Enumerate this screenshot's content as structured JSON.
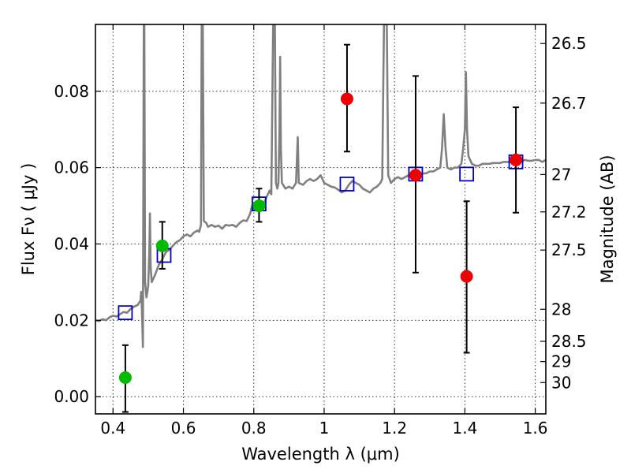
{
  "chart_data": {
    "type": "scatter",
    "title": "",
    "xlabel": "Wavelength  λ (μm)",
    "ylabel": "Flux  Fν  ( μJy )",
    "ylabel_right": "Magnitude (AB)",
    "xlim": [
      0.35,
      1.63
    ],
    "ylim": [
      -0.0045,
      0.0975
    ],
    "grid": true,
    "x_ticks": [
      0.4,
      0.6,
      0.8,
      1.0,
      1.2,
      1.4,
      1.6
    ],
    "x_tick_labels": [
      "0.4",
      "0.6",
      "0.8",
      "1",
      "1.2",
      "1.4",
      "1.6"
    ],
    "y_ticks": [
      0.0,
      0.02,
      0.04,
      0.06,
      0.08
    ],
    "y_tick_labels": [
      "0.00",
      "0.02",
      "0.04",
      "0.06",
      "0.08"
    ],
    "right_ticks": [
      {
        "flux": 0.0925,
        "label": "26.5"
      },
      {
        "flux": 0.0769,
        "label": "26.7"
      },
      {
        "flux": 0.0582,
        "label": "27"
      },
      {
        "flux": 0.0484,
        "label": "27.2"
      },
      {
        "flux": 0.0384,
        "label": "27.5"
      },
      {
        "flux": 0.0229,
        "label": "28"
      },
      {
        "flux": 0.0145,
        "label": "28.5"
      },
      {
        "flux": 0.0092,
        "label": "29"
      },
      {
        "flux": 0.0037,
        "label": "30"
      }
    ],
    "series": [
      {
        "kind": "line",
        "color": "#808080",
        "points": [
          [
            0.35,
            0.02
          ],
          [
            0.36,
            0.0198
          ],
          [
            0.37,
            0.0203
          ],
          [
            0.38,
            0.02
          ],
          [
            0.39,
            0.0208
          ],
          [
            0.4,
            0.0212
          ],
          [
            0.41,
            0.021
          ],
          [
            0.42,
            0.0216
          ],
          [
            0.43,
            0.0222
          ],
          [
            0.44,
            0.022
          ],
          [
            0.45,
            0.023
          ],
          [
            0.46,
            0.0236
          ],
          [
            0.47,
            0.024
          ],
          [
            0.478,
            0.0252
          ],
          [
            0.48,
            0.0275
          ],
          [
            0.482,
            0.023
          ],
          [
            0.485,
            0.013
          ],
          [
            0.4875,
            0.0975
          ],
          [
            0.489,
            0.0975
          ],
          [
            0.491,
            0.03
          ],
          [
            0.495,
            0.026
          ],
          [
            0.5,
            0.029
          ],
          [
            0.503,
            0.038
          ],
          [
            0.505,
            0.048
          ],
          [
            0.507,
            0.034
          ],
          [
            0.51,
            0.03
          ],
          [
            0.52,
            0.032
          ],
          [
            0.53,
            0.0345
          ],
          [
            0.54,
            0.036
          ],
          [
            0.55,
            0.0378
          ],
          [
            0.56,
            0.0385
          ],
          [
            0.57,
            0.0395
          ],
          [
            0.58,
            0.0405
          ],
          [
            0.59,
            0.041
          ],
          [
            0.6,
            0.042
          ],
          [
            0.61,
            0.0425
          ],
          [
            0.62,
            0.042
          ],
          [
            0.63,
            0.043
          ],
          [
            0.64,
            0.0435
          ],
          [
            0.645,
            0.0432
          ],
          [
            0.65,
            0.045
          ],
          [
            0.652,
            0.0975
          ],
          [
            0.655,
            0.0975
          ],
          [
            0.658,
            0.046
          ],
          [
            0.665,
            0.0455
          ],
          [
            0.67,
            0.0445
          ],
          [
            0.68,
            0.045
          ],
          [
            0.69,
            0.0445
          ],
          [
            0.7,
            0.0448
          ],
          [
            0.71,
            0.044
          ],
          [
            0.72,
            0.045
          ],
          [
            0.73,
            0.0448
          ],
          [
            0.74,
            0.045
          ],
          [
            0.75,
            0.0445
          ],
          [
            0.76,
            0.0455
          ],
          [
            0.77,
            0.0462
          ],
          [
            0.78,
            0.046
          ],
          [
            0.785,
            0.047
          ],
          [
            0.79,
            0.048
          ],
          [
            0.795,
            0.05
          ],
          [
            0.8,
            0.049
          ],
          [
            0.81,
            0.05
          ],
          [
            0.815,
            0.0495
          ],
          [
            0.82,
            0.0505
          ],
          [
            0.83,
            0.051
          ],
          [
            0.835,
            0.052
          ],
          [
            0.84,
            0.053
          ],
          [
            0.845,
            0.054
          ],
          [
            0.85,
            0.053
          ],
          [
            0.855,
            0.0975
          ],
          [
            0.86,
            0.0975
          ],
          [
            0.863,
            0.056
          ],
          [
            0.867,
            0.0545
          ],
          [
            0.87,
            0.056
          ],
          [
            0.873,
            0.069
          ],
          [
            0.875,
            0.089
          ],
          [
            0.877,
            0.065
          ],
          [
            0.88,
            0.056
          ],
          [
            0.89,
            0.0545
          ],
          [
            0.9,
            0.055
          ],
          [
            0.91,
            0.0545
          ],
          [
            0.92,
            0.056
          ],
          [
            0.925,
            0.068
          ],
          [
            0.928,
            0.056
          ],
          [
            0.94,
            0.0555
          ],
          [
            0.95,
            0.0565
          ],
          [
            0.96,
            0.057
          ],
          [
            0.97,
            0.0565
          ],
          [
            0.98,
            0.057
          ],
          [
            0.99,
            0.058
          ],
          [
            1.0,
            0.056
          ],
          [
            1.01,
            0.0555
          ],
          [
            1.02,
            0.055
          ],
          [
            1.03,
            0.0548
          ],
          [
            1.04,
            0.0542
          ],
          [
            1.05,
            0.0535
          ],
          [
            1.06,
            0.054
          ],
          [
            1.07,
            0.0555
          ],
          [
            1.08,
            0.0565
          ],
          [
            1.09,
            0.056
          ],
          [
            1.1,
            0.0555
          ],
          [
            1.11,
            0.0545
          ],
          [
            1.12,
            0.054
          ],
          [
            1.13,
            0.0535
          ],
          [
            1.14,
            0.0545
          ],
          [
            1.15,
            0.055
          ],
          [
            1.16,
            0.056
          ],
          [
            1.165,
            0.057
          ],
          [
            1.17,
            0.0975
          ],
          [
            1.178,
            0.0975
          ],
          [
            1.182,
            0.058
          ],
          [
            1.19,
            0.056
          ],
          [
            1.2,
            0.057
          ],
          [
            1.21,
            0.0575
          ],
          [
            1.22,
            0.057
          ],
          [
            1.23,
            0.0575
          ],
          [
            1.24,
            0.058
          ],
          [
            1.25,
            0.0578
          ],
          [
            1.26,
            0.058
          ],
          [
            1.27,
            0.0582
          ],
          [
            1.28,
            0.0585
          ],
          [
            1.29,
            0.0585
          ],
          [
            1.3,
            0.059
          ],
          [
            1.31,
            0.059
          ],
          [
            1.32,
            0.0595
          ],
          [
            1.33,
            0.06
          ],
          [
            1.335,
            0.065
          ],
          [
            1.34,
            0.074
          ],
          [
            1.345,
            0.065
          ],
          [
            1.35,
            0.06
          ],
          [
            1.36,
            0.0595
          ],
          [
            1.37,
            0.06
          ],
          [
            1.38,
            0.06
          ],
          [
            1.39,
            0.061
          ],
          [
            1.395,
            0.065
          ],
          [
            1.4,
            0.07
          ],
          [
            1.403,
            0.085
          ],
          [
            1.406,
            0.07
          ],
          [
            1.41,
            0.063
          ],
          [
            1.42,
            0.061
          ],
          [
            1.43,
            0.0605
          ],
          [
            1.44,
            0.0605
          ],
          [
            1.45,
            0.061
          ],
          [
            1.46,
            0.061
          ],
          [
            1.47,
            0.061
          ],
          [
            1.48,
            0.0612
          ],
          [
            1.49,
            0.0612
          ],
          [
            1.5,
            0.0612
          ],
          [
            1.51,
            0.0615
          ],
          [
            1.52,
            0.0615
          ],
          [
            1.53,
            0.0615
          ],
          [
            1.54,
            0.0615
          ],
          [
            1.55,
            0.062
          ],
          [
            1.56,
            0.0615
          ],
          [
            1.57,
            0.062
          ],
          [
            1.58,
            0.0618
          ],
          [
            1.59,
            0.0618
          ],
          [
            1.6,
            0.062
          ],
          [
            1.61,
            0.062
          ],
          [
            1.62,
            0.0615
          ],
          [
            1.63,
            0.062
          ]
        ]
      },
      {
        "kind": "square",
        "color": "#0000cc",
        "points": [
          [
            0.435,
            0.022
          ],
          [
            0.545,
            0.037
          ],
          [
            0.815,
            0.0505
          ],
          [
            1.065,
            0.0557
          ],
          [
            1.26,
            0.0583
          ],
          [
            1.405,
            0.0583
          ],
          [
            1.545,
            0.0615
          ]
        ]
      },
      {
        "kind": "circle_err",
        "color": "#00bb00",
        "points": [
          {
            "x": 0.435,
            "y": 0.005,
            "lo": -0.004,
            "hi": 0.0135
          },
          {
            "x": 0.54,
            "y": 0.0395,
            "lo": 0.0335,
            "hi": 0.0458
          },
          {
            "x": 0.815,
            "y": 0.05,
            "lo": 0.0458,
            "hi": 0.0545
          }
        ]
      },
      {
        "kind": "circle_err",
        "color": "#ee0000",
        "points": [
          {
            "x": 1.065,
            "y": 0.078,
            "lo": 0.0642,
            "hi": 0.0922
          },
          {
            "x": 1.26,
            "y": 0.058,
            "lo": 0.0325,
            "hi": 0.084
          },
          {
            "x": 1.405,
            "y": 0.0315,
            "lo": 0.0115,
            "hi": 0.0512
          },
          {
            "x": 1.545,
            "y": 0.062,
            "lo": 0.0482,
            "hi": 0.0758
          }
        ]
      }
    ]
  }
}
